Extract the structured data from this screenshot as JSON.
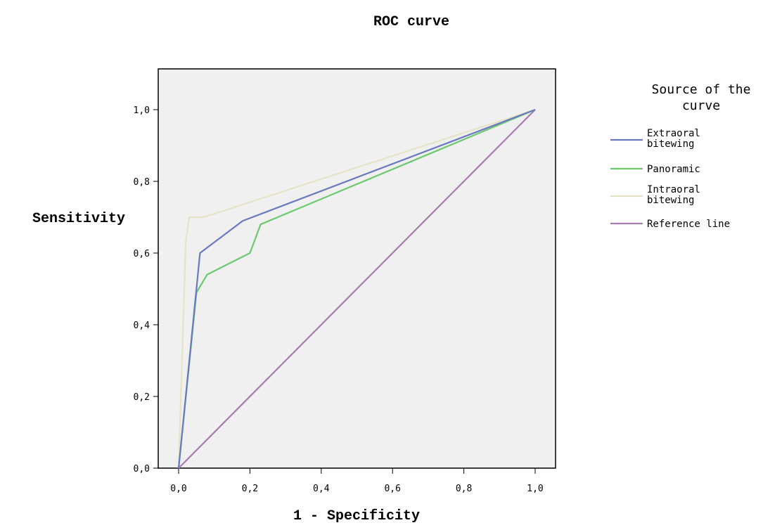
{
  "chart_data": {
    "type": "line",
    "title": "ROC curve",
    "xlabel": "1 - Specificity",
    "ylabel": "Sensitivity",
    "xlim": [
      0,
      1.1
    ],
    "ylim": [
      0,
      1.1
    ],
    "x_ticks": [
      "0,0",
      "0,2",
      "0,4",
      "0,6",
      "0,8",
      "1,0"
    ],
    "y_ticks": [
      "0,0",
      "0,2",
      "0,4",
      "0,6",
      "0,8",
      "1,0"
    ],
    "grid": false,
    "background": "#f0f0f0",
    "legend_title": "Source of the curve",
    "legend_position": "right",
    "series": [
      {
        "name": "Extraoral bitewing",
        "color": "#6a78c0",
        "points": [
          [
            0,
            0
          ],
          [
            0.06,
            0.6
          ],
          [
            0.18,
            0.69
          ],
          [
            1,
            1
          ]
        ]
      },
      {
        "name": "Panoramic",
        "color": "#6cc96e",
        "points": [
          [
            0,
            0
          ],
          [
            0.05,
            0.49
          ],
          [
            0.08,
            0.54
          ],
          [
            0.2,
            0.6
          ],
          [
            0.23,
            0.68
          ],
          [
            1,
            1
          ]
        ]
      },
      {
        "name": "Intraoral bitewing",
        "color": "#e5e2c7",
        "points": [
          [
            0,
            0
          ],
          [
            0.02,
            0.63
          ],
          [
            0.03,
            0.7
          ],
          [
            0.07,
            0.7
          ],
          [
            1,
            1
          ]
        ]
      },
      {
        "name": "Reference line",
        "color": "#a77bb0",
        "points": [
          [
            0,
            0
          ],
          [
            1,
            1
          ]
        ]
      }
    ]
  }
}
